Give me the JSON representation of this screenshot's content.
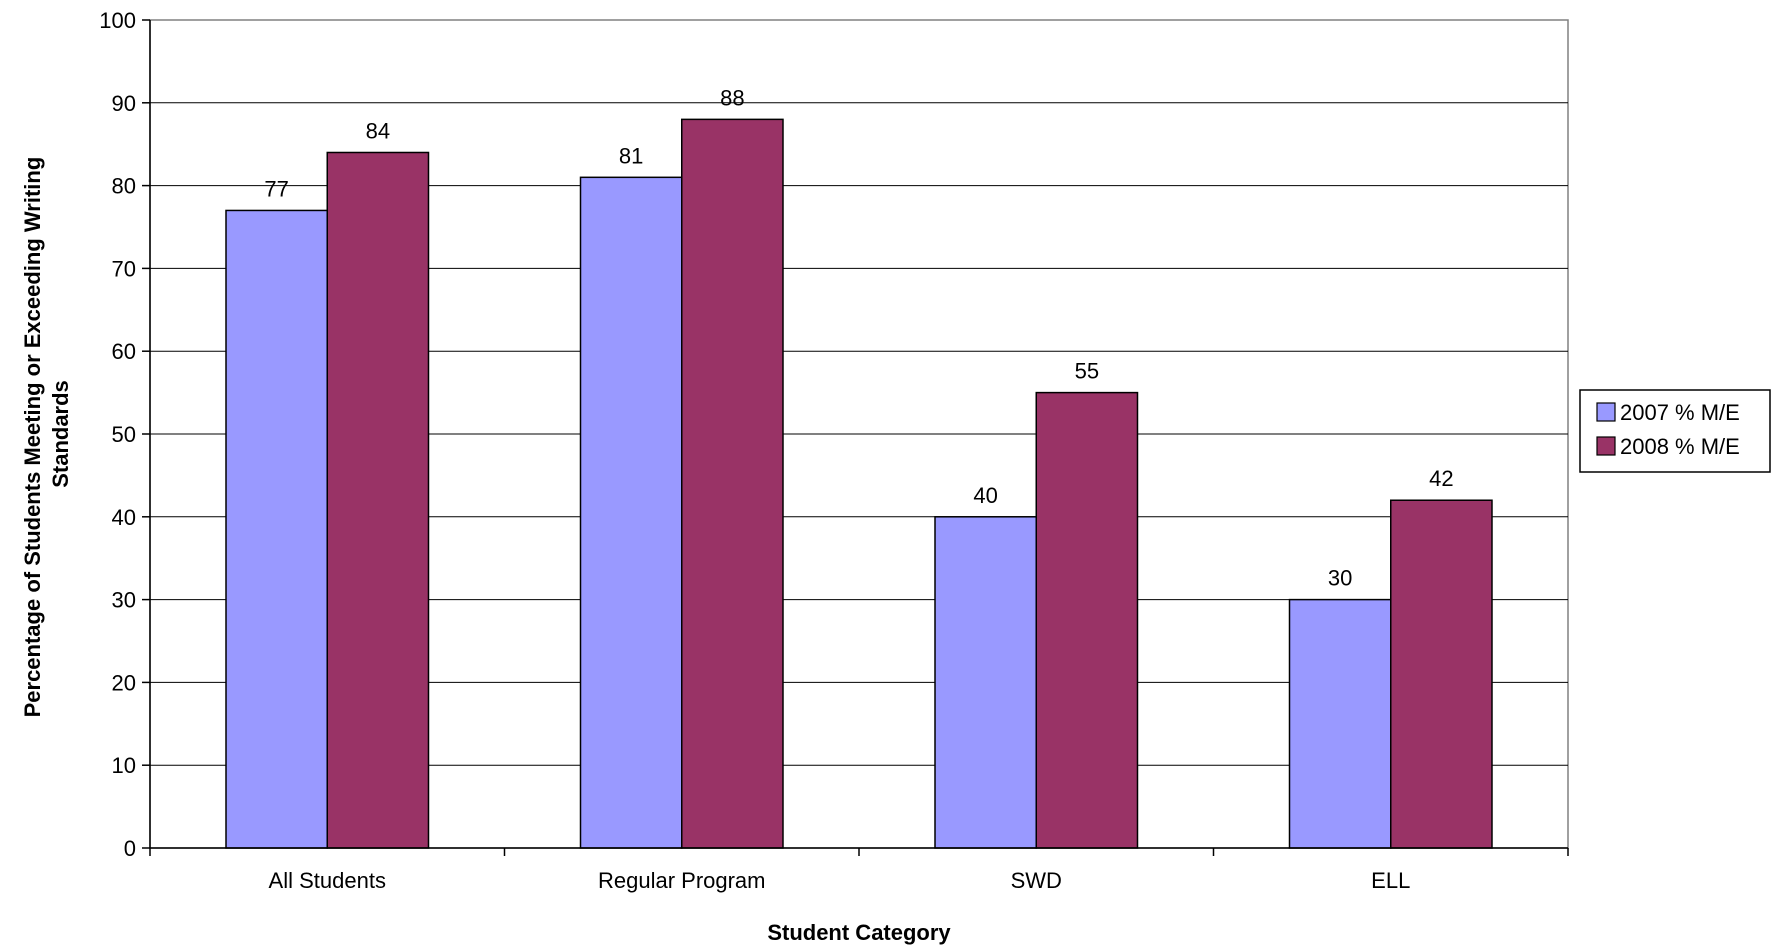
{
  "chart_data": {
    "type": "bar",
    "title": "",
    "xlabel": "Student Category",
    "ylabel_lines": [
      "Percentage of Students Meeting or Exceeding Writing",
      "Standards"
    ],
    "categories": [
      "All Students",
      "Regular Program",
      "SWD",
      "ELL"
    ],
    "series": [
      {
        "name": "2007 % M/E",
        "color": "#9999ff",
        "values": [
          77,
          81,
          40,
          30
        ]
      },
      {
        "name": "2008 % M/E",
        "color": "#993366",
        "values": [
          84,
          88,
          55,
          42
        ]
      }
    ],
    "ylim": [
      0,
      100
    ],
    "yticks": [
      0,
      10,
      20,
      30,
      40,
      50,
      60,
      70,
      80,
      90,
      100
    ],
    "grid": true,
    "legend_position": "right",
    "data_labels": true
  }
}
